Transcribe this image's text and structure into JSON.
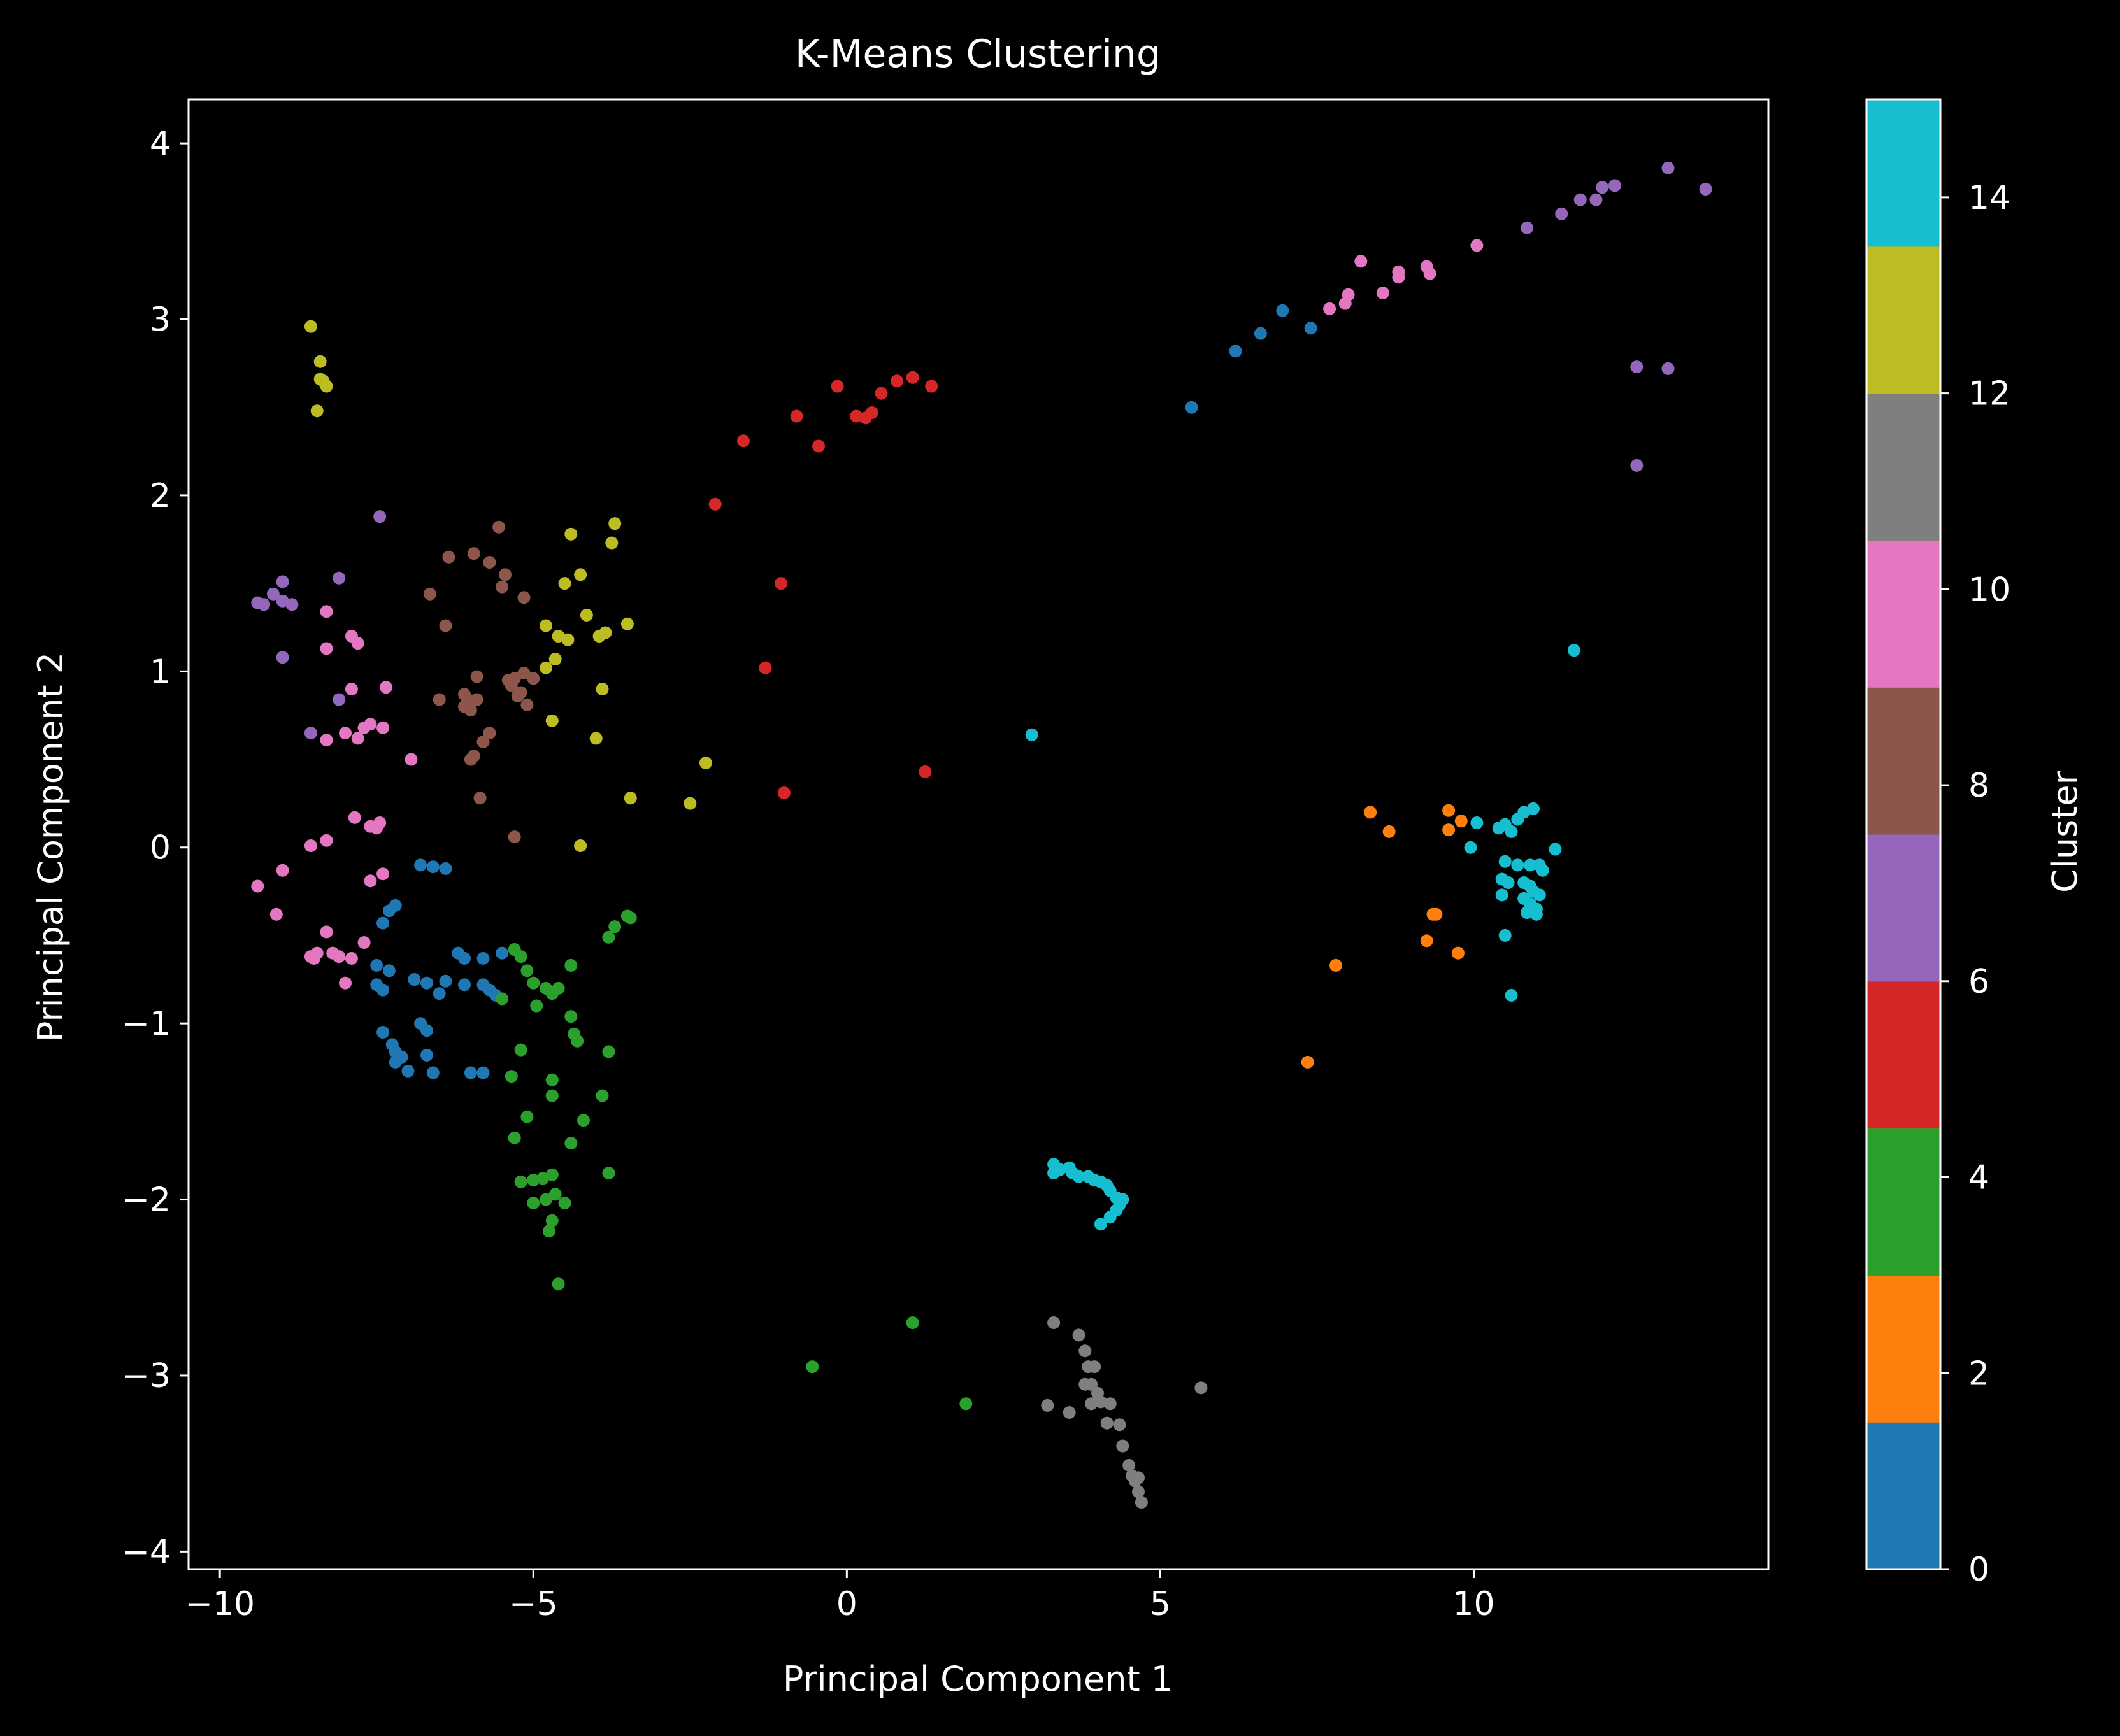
{
  "chart_data": {
    "type": "scatter",
    "title": "K-Means Clustering",
    "xlabel": "Principal Component 1",
    "ylabel": "Principal Component 2",
    "xlim": [
      -10.5,
      14.7
    ],
    "ylim": [
      -4.1,
      4.25
    ],
    "xticks": [
      -10,
      -5,
      0,
      5,
      10
    ],
    "yticks": [
      -4,
      -3,
      -2,
      -1,
      0,
      1,
      2,
      3,
      4
    ],
    "grid": false,
    "colorbar": {
      "label": "Cluster",
      "range": [
        0,
        15
      ],
      "ticks": [
        0,
        2,
        4,
        6,
        8,
        10,
        12,
        14
      ],
      "bands": [
        "#1f77b4",
        "#ff7f0e",
        "#2ca02c",
        "#d62728",
        "#9467bd",
        "#8c564b",
        "#e377c2",
        "#7f7f7f",
        "#bcbd22",
        "#17becf"
      ]
    },
    "series": [
      {
        "color": "#1f77b4",
        "points": [
          [
            -6.8,
            -0.1
          ],
          [
            -6.6,
            -0.11
          ],
          [
            -6.4,
            -0.12
          ],
          [
            -7.2,
            -0.33
          ],
          [
            -7.3,
            -0.36
          ],
          [
            -7.4,
            -0.43
          ],
          [
            -7.5,
            -0.67
          ],
          [
            -7.3,
            -0.7
          ],
          [
            -7.5,
            -0.78
          ],
          [
            -7.4,
            -0.81
          ],
          [
            -6.9,
            -0.75
          ],
          [
            -6.7,
            -0.77
          ],
          [
            -6.4,
            -0.76
          ],
          [
            -6.5,
            -0.83
          ],
          [
            -6.2,
            -0.6
          ],
          [
            -6.1,
            -0.63
          ],
          [
            -5.8,
            -0.63
          ],
          [
            -5.8,
            -0.78
          ],
          [
            -5.7,
            -0.81
          ],
          [
            -5.6,
            -0.84
          ],
          [
            -5.5,
            -0.6
          ],
          [
            -6.1,
            -0.78
          ],
          [
            -7.4,
            -1.05
          ],
          [
            -7.25,
            -1.12
          ],
          [
            -7.2,
            -1.16
          ],
          [
            -7.1,
            -1.19
          ],
          [
            -7.2,
            -1.22
          ],
          [
            -7.0,
            -1.27
          ],
          [
            -6.8,
            -1.0
          ],
          [
            -6.7,
            -1.04
          ],
          [
            -6.7,
            -1.18
          ],
          [
            -6.6,
            -1.28
          ],
          [
            -6.0,
            -1.28
          ],
          [
            -5.8,
            -1.28
          ],
          [
            5.5,
            2.5
          ],
          [
            6.2,
            2.82
          ],
          [
            6.6,
            2.92
          ],
          [
            6.95,
            3.05
          ],
          [
            7.4,
            2.95
          ]
        ]
      },
      {
        "color": "#ff7f0e",
        "points": [
          [
            8.35,
            0.2
          ],
          [
            8.65,
            0.09
          ],
          [
            9.6,
            0.21
          ],
          [
            9.6,
            0.1
          ],
          [
            9.8,
            0.15
          ],
          [
            9.35,
            -0.38
          ],
          [
            9.4,
            -0.38
          ],
          [
            9.25,
            -0.53
          ],
          [
            9.75,
            -0.6
          ],
          [
            7.8,
            -0.67
          ],
          [
            7.35,
            -1.22
          ]
        ]
      },
      {
        "color": "#2ca02c",
        "points": [
          [
            -5.3,
            -0.58
          ],
          [
            -5.2,
            -0.62
          ],
          [
            -5.1,
            -0.7
          ],
          [
            -5.0,
            -0.77
          ],
          [
            -4.8,
            -0.8
          ],
          [
            -4.7,
            -0.83
          ],
          [
            -4.6,
            -0.8
          ],
          [
            -5.5,
            -0.86
          ],
          [
            -4.4,
            -0.67
          ],
          [
            -4.3,
            -1.1
          ],
          [
            -4.4,
            -0.96
          ],
          [
            -4.35,
            -1.06
          ],
          [
            -4.95,
            -0.9
          ],
          [
            -5.2,
            -1.15
          ],
          [
            -5.35,
            -1.3
          ],
          [
            -4.7,
            -1.32
          ],
          [
            -4.7,
            -1.41
          ],
          [
            -3.9,
            -1.41
          ],
          [
            -3.8,
            -1.16
          ],
          [
            -4.2,
            -1.55
          ],
          [
            -5.1,
            -1.53
          ],
          [
            -5.3,
            -1.65
          ],
          [
            -4.4,
            -1.68
          ],
          [
            -4.7,
            -1.86
          ],
          [
            -4.85,
            -1.88
          ],
          [
            -5.0,
            -1.89
          ],
          [
            -5.2,
            -1.9
          ],
          [
            -4.65,
            -1.97
          ],
          [
            -4.8,
            -2.0
          ],
          [
            -5.0,
            -2.02
          ],
          [
            -4.5,
            -2.02
          ],
          [
            -4.7,
            -2.12
          ],
          [
            -4.75,
            -2.18
          ],
          [
            -3.8,
            -1.85
          ],
          [
            -4.6,
            -2.48
          ],
          [
            -3.7,
            -0.45
          ],
          [
            -3.8,
            -0.51
          ],
          [
            -3.5,
            -0.39
          ],
          [
            -3.45,
            -0.4
          ],
          [
            1.05,
            -2.7
          ],
          [
            -0.55,
            -2.95
          ],
          [
            1.9,
            -3.16
          ]
        ]
      },
      {
        "color": "#d62728",
        "points": [
          [
            -1.65,
            2.31
          ],
          [
            -0.8,
            2.45
          ],
          [
            -0.45,
            2.28
          ],
          [
            -0.15,
            2.62
          ],
          [
            0.15,
            2.45
          ],
          [
            0.3,
            2.44
          ],
          [
            0.4,
            2.47
          ],
          [
            0.55,
            2.58
          ],
          [
            0.8,
            2.65
          ],
          [
            1.05,
            2.67
          ],
          [
            1.35,
            2.62
          ],
          [
            -2.1,
            1.95
          ],
          [
            -1.05,
            1.5
          ],
          [
            -1.3,
            1.02
          ],
          [
            -1.0,
            0.31
          ],
          [
            1.25,
            0.43
          ]
        ]
      },
      {
        "color": "#9467bd",
        "points": [
          [
            -9.4,
            1.39
          ],
          [
            -9.3,
            1.38
          ],
          [
            -9.15,
            1.44
          ],
          [
            -9.0,
            1.4
          ],
          [
            -8.85,
            1.38
          ],
          [
            -9.0,
            1.51
          ],
          [
            -8.1,
            1.53
          ],
          [
            -7.45,
            1.88
          ],
          [
            -9.0,
            1.08
          ],
          [
            -8.55,
            0.65
          ],
          [
            -8.1,
            0.84
          ],
          [
            10.85,
            3.52
          ],
          [
            11.4,
            3.6
          ],
          [
            11.7,
            3.68
          ],
          [
            11.95,
            3.68
          ],
          [
            12.05,
            3.75
          ],
          [
            12.25,
            3.76
          ],
          [
            13.1,
            3.86
          ],
          [
            13.7,
            3.74
          ],
          [
            12.6,
            2.73
          ],
          [
            13.1,
            2.72
          ],
          [
            12.6,
            2.17
          ]
        ]
      },
      {
        "color": "#8c564b",
        "points": [
          [
            -6.35,
            1.65
          ],
          [
            -5.95,
            1.67
          ],
          [
            -5.55,
            1.82
          ],
          [
            -5.7,
            1.62
          ],
          [
            -5.5,
            1.48
          ],
          [
            -5.45,
            1.55
          ],
          [
            -5.15,
            1.42
          ],
          [
            -6.65,
            1.44
          ],
          [
            -6.4,
            1.26
          ],
          [
            -5.9,
            0.97
          ],
          [
            -5.4,
            0.95
          ],
          [
            -5.3,
            0.96
          ],
          [
            -5.15,
            0.99
          ],
          [
            -5.0,
            0.96
          ],
          [
            -5.35,
            0.92
          ],
          [
            -5.2,
            0.88
          ],
          [
            -5.25,
            0.86
          ],
          [
            -6.1,
            0.87
          ],
          [
            -6.05,
            0.84
          ],
          [
            -5.9,
            0.84
          ],
          [
            -6.1,
            0.8
          ],
          [
            -6.0,
            0.78
          ],
          [
            -5.1,
            0.81
          ],
          [
            -6.5,
            0.84
          ],
          [
            -5.7,
            0.65
          ],
          [
            -5.8,
            0.6
          ],
          [
            -6.0,
            0.5
          ],
          [
            -5.95,
            0.52
          ],
          [
            -5.85,
            0.28
          ],
          [
            -5.3,
            0.06
          ]
        ]
      },
      {
        "color": "#e377c2",
        "points": [
          [
            -8.3,
            1.34
          ],
          [
            -7.9,
            1.2
          ],
          [
            -7.8,
            1.16
          ],
          [
            -8.3,
            1.13
          ],
          [
            -7.9,
            0.9
          ],
          [
            -7.35,
            0.91
          ],
          [
            -8.0,
            0.65
          ],
          [
            -7.8,
            0.62
          ],
          [
            -7.7,
            0.68
          ],
          [
            -7.6,
            0.7
          ],
          [
            -7.4,
            0.68
          ],
          [
            -8.3,
            0.61
          ],
          [
            -6.95,
            0.5
          ],
          [
            -7.85,
            0.17
          ],
          [
            -7.6,
            0.12
          ],
          [
            -7.5,
            0.11
          ],
          [
            -7.45,
            0.14
          ],
          [
            -8.55,
            0.01
          ],
          [
            -8.3,
            0.04
          ],
          [
            -7.6,
            -0.19
          ],
          [
            -7.4,
            -0.15
          ],
          [
            -9.4,
            -0.22
          ],
          [
            -9.1,
            -0.38
          ],
          [
            -9.0,
            -0.13
          ],
          [
            -8.3,
            -0.48
          ],
          [
            -8.55,
            -0.62
          ],
          [
            -8.5,
            -0.63
          ],
          [
            -8.45,
            -0.6
          ],
          [
            -8.2,
            -0.6
          ],
          [
            -8.1,
            -0.62
          ],
          [
            -7.9,
            -0.63
          ],
          [
            -7.7,
            -0.54
          ],
          [
            -8.0,
            -0.77
          ],
          [
            8.2,
            3.33
          ],
          [
            7.7,
            3.06
          ],
          [
            7.95,
            3.09
          ],
          [
            8.0,
            3.14
          ],
          [
            8.55,
            3.15
          ],
          [
            8.8,
            3.27
          ],
          [
            8.8,
            3.24
          ],
          [
            9.25,
            3.3
          ],
          [
            9.3,
            3.26
          ],
          [
            10.05,
            3.42
          ]
        ]
      },
      {
        "color": "#7f7f7f",
        "points": [
          [
            3.3,
            -2.7
          ],
          [
            3.7,
            -2.77
          ],
          [
            3.8,
            -2.86
          ],
          [
            3.85,
            -2.95
          ],
          [
            3.95,
            -2.95
          ],
          [
            3.8,
            -3.05
          ],
          [
            3.9,
            -3.05
          ],
          [
            4.0,
            -3.1
          ],
          [
            4.05,
            -3.15
          ],
          [
            3.9,
            -3.16
          ],
          [
            4.2,
            -3.16
          ],
          [
            3.2,
            -3.17
          ],
          [
            3.55,
            -3.21
          ],
          [
            4.15,
            -3.27
          ],
          [
            4.35,
            -3.28
          ],
          [
            4.4,
            -3.4
          ],
          [
            4.5,
            -3.51
          ],
          [
            4.55,
            -3.57
          ],
          [
            4.6,
            -3.6
          ],
          [
            4.65,
            -3.66
          ],
          [
            4.7,
            -3.72
          ],
          [
            4.65,
            -3.58
          ],
          [
            5.65,
            -3.07
          ]
        ]
      },
      {
        "color": "#bcbd22",
        "points": [
          [
            -8.55,
            2.96
          ],
          [
            -8.4,
            2.76
          ],
          [
            -8.4,
            2.66
          ],
          [
            -8.35,
            2.65
          ],
          [
            -8.3,
            2.62
          ],
          [
            -8.45,
            2.48
          ],
          [
            -3.7,
            1.84
          ],
          [
            -4.4,
            1.78
          ],
          [
            -3.75,
            1.73
          ],
          [
            -4.25,
            1.55
          ],
          [
            -4.5,
            1.5
          ],
          [
            -4.15,
            1.32
          ],
          [
            -4.8,
            1.26
          ],
          [
            -4.6,
            1.2
          ],
          [
            -3.95,
            1.2
          ],
          [
            -3.85,
            1.22
          ],
          [
            -3.5,
            1.27
          ],
          [
            -4.45,
            1.18
          ],
          [
            -4.8,
            1.02
          ],
          [
            -4.65,
            1.07
          ],
          [
            -3.9,
            0.9
          ],
          [
            -4.7,
            0.72
          ],
          [
            -4.0,
            0.62
          ],
          [
            -3.45,
            0.28
          ],
          [
            -2.25,
            0.48
          ],
          [
            -2.5,
            0.25
          ],
          [
            -4.25,
            0.01
          ]
        ]
      },
      {
        "color": "#17becf",
        "points": [
          [
            3.3,
            -1.8
          ],
          [
            3.3,
            -1.85
          ],
          [
            3.4,
            -1.83
          ],
          [
            3.55,
            -1.82
          ],
          [
            3.6,
            -1.85
          ],
          [
            3.7,
            -1.87
          ],
          [
            3.85,
            -1.87
          ],
          [
            3.95,
            -1.89
          ],
          [
            4.05,
            -1.9
          ],
          [
            4.15,
            -1.92
          ],
          [
            4.2,
            -1.95
          ],
          [
            4.3,
            -1.99
          ],
          [
            4.35,
            -2.03
          ],
          [
            4.3,
            -2.06
          ],
          [
            4.2,
            -2.1
          ],
          [
            4.05,
            -2.14
          ],
          [
            4.4,
            -2.0
          ],
          [
            10.8,
            0.2
          ],
          [
            10.95,
            0.22
          ],
          [
            10.7,
            0.16
          ],
          [
            10.6,
            0.09
          ],
          [
            10.5,
            0.13
          ],
          [
            10.4,
            0.11
          ],
          [
            10.05,
            0.14
          ],
          [
            9.95,
            0.0
          ],
          [
            11.3,
            -0.01
          ],
          [
            10.5,
            -0.08
          ],
          [
            10.7,
            -0.1
          ],
          [
            10.9,
            -0.1
          ],
          [
            11.05,
            -0.1
          ],
          [
            11.1,
            -0.13
          ],
          [
            10.45,
            -0.18
          ],
          [
            10.55,
            -0.2
          ],
          [
            10.8,
            -0.2
          ],
          [
            10.9,
            -0.22
          ],
          [
            10.95,
            -0.25
          ],
          [
            11.05,
            -0.27
          ],
          [
            10.45,
            -0.27
          ],
          [
            10.8,
            -0.29
          ],
          [
            10.9,
            -0.32
          ],
          [
            11.0,
            -0.35
          ],
          [
            10.85,
            -0.37
          ],
          [
            11.0,
            -0.38
          ],
          [
            10.5,
            -0.5
          ],
          [
            10.6,
            -0.84
          ],
          [
            2.95,
            0.64
          ],
          [
            11.6,
            1.12
          ]
        ]
      }
    ]
  }
}
